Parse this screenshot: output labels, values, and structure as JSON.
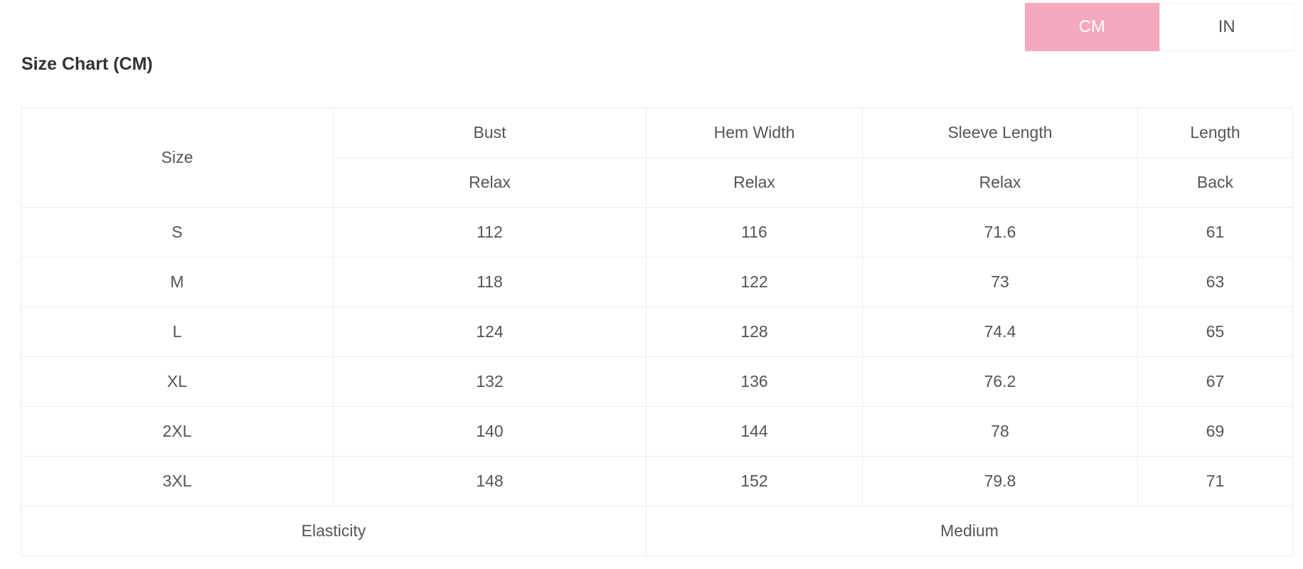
{
  "unit_toggle": {
    "options": [
      "CM",
      "IN"
    ],
    "selected": "CM",
    "accent_color": "#f4a9bd"
  },
  "title": "Size Chart (CM)",
  "table": {
    "size_header": "Size",
    "columns": [
      {
        "name": "Bust",
        "sub": "Relax"
      },
      {
        "name": "Hem Width",
        "sub": "Relax"
      },
      {
        "name": "Sleeve Length",
        "sub": "Relax"
      },
      {
        "name": "Length",
        "sub": "Back"
      }
    ],
    "rows": [
      {
        "size": "S",
        "values": [
          "112",
          "116",
          "71.6",
          "61"
        ]
      },
      {
        "size": "M",
        "values": [
          "118",
          "122",
          "73",
          "63"
        ]
      },
      {
        "size": "L",
        "values": [
          "124",
          "128",
          "74.4",
          "65"
        ]
      },
      {
        "size": "XL",
        "values": [
          "132",
          "136",
          "76.2",
          "67"
        ]
      },
      {
        "size": "2XL",
        "values": [
          "140",
          "144",
          "78",
          "69"
        ]
      },
      {
        "size": "3XL",
        "values": [
          "148",
          "152",
          "79.8",
          "71"
        ]
      }
    ],
    "footer": {
      "label": "Elasticity",
      "value": "Medium"
    }
  }
}
